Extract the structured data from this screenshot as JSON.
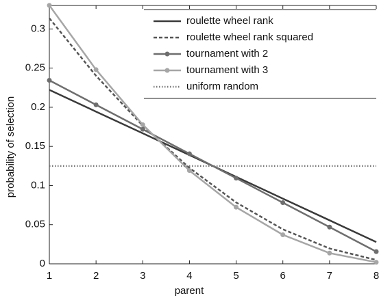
{
  "chart_data": {
    "type": "line",
    "x_label": "parent",
    "y_label": "probability of selection",
    "x": [
      1,
      2,
      3,
      4,
      5,
      6,
      7,
      8
    ],
    "xlim": [
      1,
      8
    ],
    "xticks": [
      1,
      2,
      3,
      4,
      5,
      6,
      7,
      8
    ],
    "ylim": [
      0,
      0.33
    ],
    "yticks": [
      0,
      0.05,
      0.1,
      0.15,
      0.2,
      0.25,
      0.3
    ],
    "legend": "upper right",
    "series": [
      {
        "name": "roulette wheel rank",
        "color": "#3a3a3a",
        "dash": "solid",
        "marker": false,
        "values": [
          0.2222,
          0.1944,
          0.1667,
          0.1389,
          0.1111,
          0.0833,
          0.0556,
          0.0278
        ]
      },
      {
        "name": "roulette wheel rank squared",
        "color": "#555555",
        "dash": "dashed",
        "marker": false,
        "values": [
          0.3137,
          0.2402,
          0.1765,
          0.1225,
          0.0784,
          0.0441,
          0.0196,
          0.0049
        ]
      },
      {
        "name": "tournament with 2",
        "color": "#6e6e6e",
        "dash": "solid",
        "marker": true,
        "values": [
          0.2344,
          0.2031,
          0.1719,
          0.1406,
          0.1094,
          0.0781,
          0.0469,
          0.0156
        ]
      },
      {
        "name": "tournament with 3",
        "color": "#a6a6a6",
        "dash": "solid",
        "marker": true,
        "values": [
          0.3301,
          0.248,
          0.1777,
          0.1191,
          0.0723,
          0.0371,
          0.0137,
          0.002
        ]
      },
      {
        "name": "uniform random",
        "color": "#777777",
        "dash": "dotted",
        "marker": false,
        "values": [
          0.125,
          0.125,
          0.125,
          0.125,
          0.125,
          0.125,
          0.125,
          0.125
        ]
      }
    ]
  }
}
